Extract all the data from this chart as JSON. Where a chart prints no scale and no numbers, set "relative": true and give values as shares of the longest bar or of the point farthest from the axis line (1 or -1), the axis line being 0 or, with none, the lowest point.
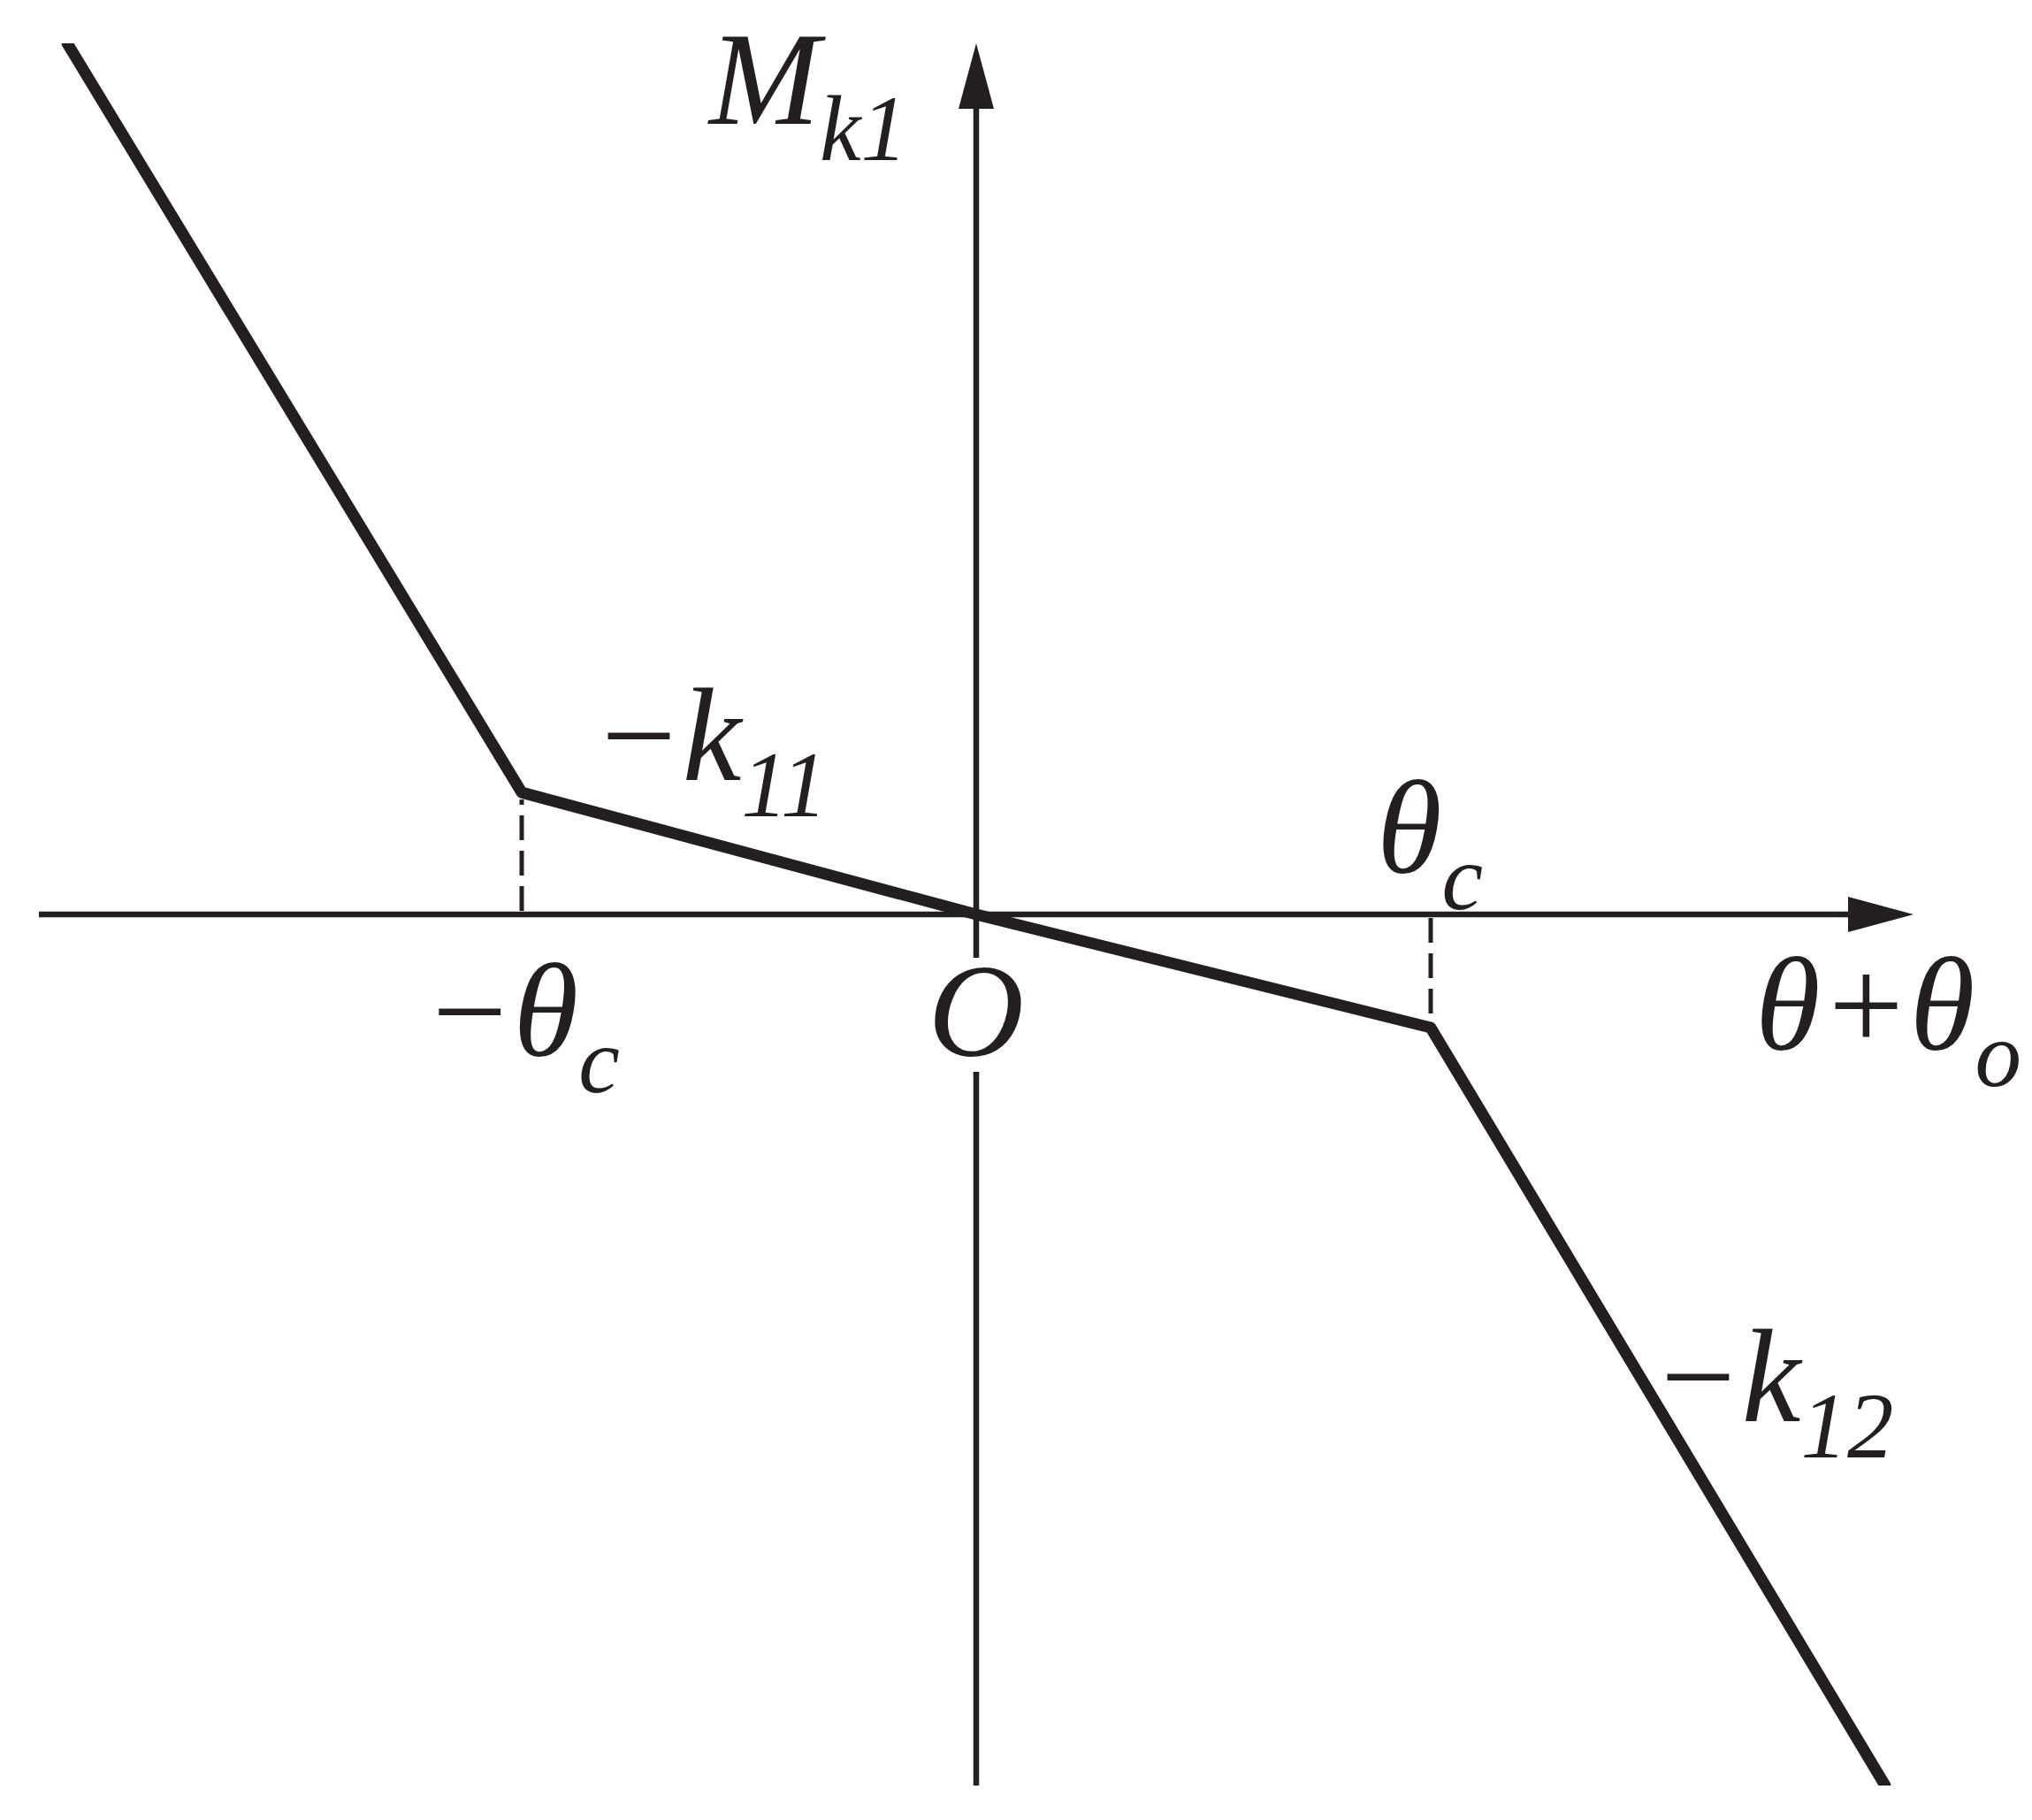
{
  "chart_data": {
    "type": "line",
    "xlabel": "θ+θ$_{o}$",
    "ylabel": "M$_{k1}$",
    "relative": true,
    "categories": [
      null,
      "−θ$_{c}$",
      "O",
      null,
      null
    ],
    "series": [
      {
        "color": "#231f20",
        "values": [
          1,
          0.14,
          0,
          -0.13,
          -1
        ]
      }
    ],
    "annotations": [
      "−k$_{11}$",
      "θ$_{c}$",
      "−k$_{12}$"
    ]
  }
}
